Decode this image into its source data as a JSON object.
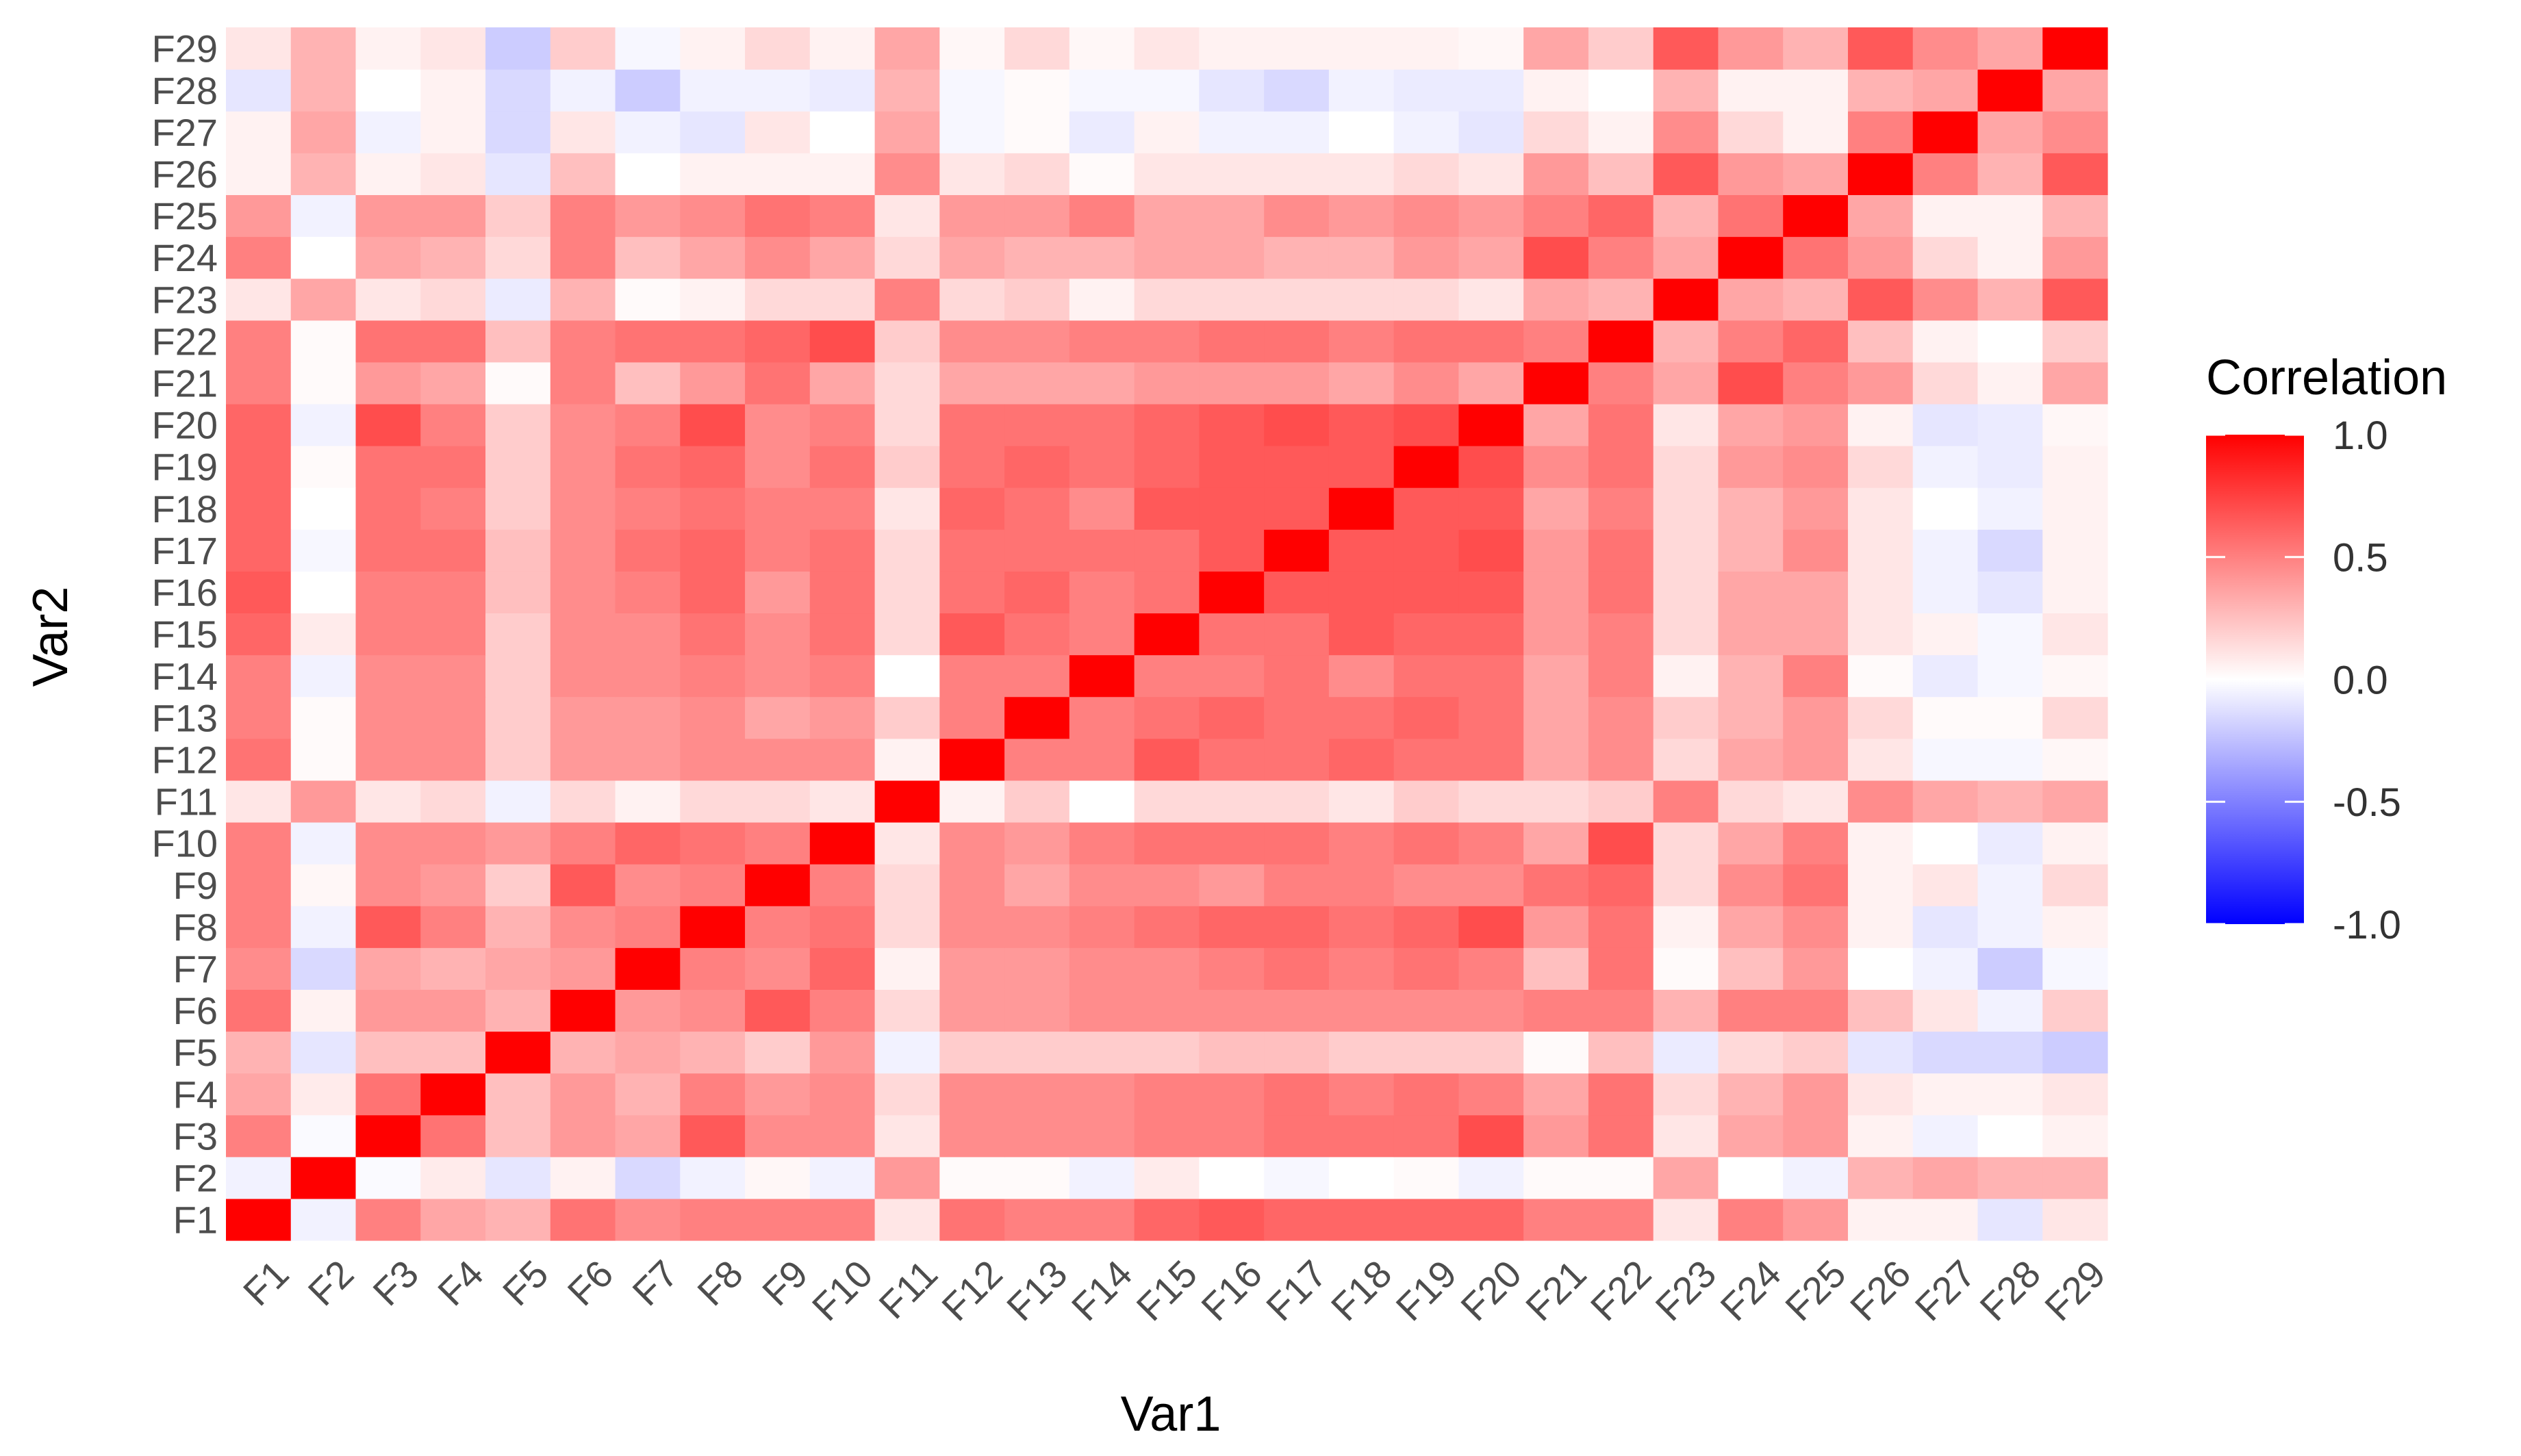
{
  "chart_data": {
    "type": "heatmap",
    "variables": [
      "F1",
      "F2",
      "F3",
      "F4",
      "F5",
      "F6",
      "F7",
      "F8",
      "F9",
      "F10",
      "F11",
      "F12",
      "F13",
      "F14",
      "F15",
      "F16",
      "F17",
      "F18",
      "F19",
      "F20",
      "F21",
      "F22",
      "F23",
      "F24",
      "F25",
      "F26",
      "F27",
      "F28",
      "F29"
    ],
    "xlabel": "Var1",
    "ylabel": "Var2",
    "legend": {
      "title": "Correlation",
      "position": "right",
      "ticks": [
        1.0,
        0.5,
        0.0,
        -0.5,
        -1.0
      ],
      "tick_labels": [
        "1.0",
        "0.5",
        "0.0",
        "-0.5",
        "-1.0"
      ],
      "range": [
        -1.0,
        1.0
      ]
    },
    "colors": {
      "low": "#0000FF",
      "mid": "#FFFFFF",
      "high": "#FF0000"
    },
    "grid": false,
    "matrix": [
      [
        1.0,
        -0.05,
        0.5,
        0.35,
        0.3,
        0.55,
        0.45,
        0.5,
        0.5,
        0.5,
        0.1,
        0.55,
        0.5,
        0.5,
        0.6,
        0.65,
        0.6,
        0.6,
        0.6,
        0.6,
        0.5,
        0.5,
        0.1,
        0.5,
        0.4,
        0.05,
        0.05,
        -0.1,
        0.1
      ],
      [
        -0.05,
        1.0,
        -0.02,
        0.08,
        -0.1,
        0.05,
        -0.15,
        -0.05,
        0.03,
        -0.05,
        0.4,
        0.02,
        0.02,
        -0.05,
        0.08,
        0.0,
        -0.03,
        0.0,
        0.02,
        -0.05,
        0.02,
        0.02,
        0.35,
        0.0,
        -0.05,
        0.3,
        0.35,
        0.3,
        0.3
      ],
      [
        0.5,
        -0.02,
        1.0,
        0.55,
        0.25,
        0.4,
        0.35,
        0.65,
        0.45,
        0.45,
        0.1,
        0.45,
        0.45,
        0.45,
        0.5,
        0.5,
        0.55,
        0.55,
        0.55,
        0.7,
        0.4,
        0.55,
        0.1,
        0.35,
        0.4,
        0.05,
        -0.05,
        0.0,
        0.05
      ],
      [
        0.35,
        0.08,
        0.55,
        1.0,
        0.25,
        0.4,
        0.3,
        0.5,
        0.4,
        0.45,
        0.15,
        0.45,
        0.45,
        0.45,
        0.5,
        0.5,
        0.55,
        0.5,
        0.55,
        0.5,
        0.35,
        0.55,
        0.15,
        0.3,
        0.4,
        0.1,
        0.05,
        0.05,
        0.1
      ],
      [
        0.3,
        -0.1,
        0.25,
        0.25,
        1.0,
        0.3,
        0.35,
        0.3,
        0.2,
        0.4,
        -0.05,
        0.2,
        0.2,
        0.2,
        0.2,
        0.25,
        0.25,
        0.2,
        0.2,
        0.2,
        0.02,
        0.25,
        -0.08,
        0.15,
        0.2,
        -0.1,
        -0.15,
        -0.15,
        -0.2
      ],
      [
        0.55,
        0.05,
        0.4,
        0.4,
        0.3,
        1.0,
        0.4,
        0.45,
        0.65,
        0.5,
        0.15,
        0.4,
        0.4,
        0.45,
        0.45,
        0.45,
        0.45,
        0.45,
        0.45,
        0.45,
        0.5,
        0.5,
        0.3,
        0.5,
        0.5,
        0.25,
        0.1,
        -0.05,
        0.2
      ],
      [
        0.45,
        -0.15,
        0.35,
        0.3,
        0.35,
        0.4,
        1.0,
        0.5,
        0.45,
        0.6,
        0.05,
        0.4,
        0.4,
        0.45,
        0.45,
        0.5,
        0.55,
        0.5,
        0.55,
        0.5,
        0.25,
        0.55,
        0.02,
        0.25,
        0.4,
        0.0,
        -0.05,
        -0.2,
        -0.03
      ],
      [
        0.5,
        -0.05,
        0.65,
        0.5,
        0.3,
        0.45,
        0.5,
        1.0,
        0.5,
        0.55,
        0.15,
        0.45,
        0.45,
        0.5,
        0.55,
        0.6,
        0.6,
        0.55,
        0.6,
        0.7,
        0.4,
        0.55,
        0.05,
        0.35,
        0.45,
        0.05,
        -0.1,
        -0.05,
        0.05
      ],
      [
        0.5,
        0.03,
        0.45,
        0.4,
        0.2,
        0.65,
        0.45,
        0.5,
        1.0,
        0.5,
        0.15,
        0.45,
        0.35,
        0.45,
        0.45,
        0.4,
        0.5,
        0.5,
        0.45,
        0.45,
        0.55,
        0.6,
        0.15,
        0.45,
        0.55,
        0.05,
        0.1,
        -0.05,
        0.15
      ],
      [
        0.5,
        -0.05,
        0.45,
        0.45,
        0.4,
        0.5,
        0.6,
        0.55,
        0.5,
        1.0,
        0.1,
        0.45,
        0.4,
        0.5,
        0.55,
        0.55,
        0.55,
        0.5,
        0.55,
        0.5,
        0.35,
        0.7,
        0.15,
        0.35,
        0.5,
        0.05,
        0.0,
        -0.08,
        0.05
      ],
      [
        0.1,
        0.4,
        0.1,
        0.15,
        -0.05,
        0.15,
        0.05,
        0.15,
        0.15,
        0.1,
        1.0,
        0.05,
        0.2,
        0.0,
        0.15,
        0.15,
        0.15,
        0.1,
        0.2,
        0.15,
        0.15,
        0.2,
        0.5,
        0.15,
        0.1,
        0.45,
        0.35,
        0.3,
        0.35
      ],
      [
        0.55,
        0.02,
        0.45,
        0.45,
        0.2,
        0.4,
        0.4,
        0.45,
        0.45,
        0.45,
        0.05,
        1.0,
        0.5,
        0.5,
        0.65,
        0.55,
        0.55,
        0.6,
        0.55,
        0.55,
        0.35,
        0.45,
        0.15,
        0.35,
        0.4,
        0.1,
        -0.03,
        -0.03,
        0.03
      ],
      [
        0.5,
        0.02,
        0.45,
        0.45,
        0.2,
        0.4,
        0.4,
        0.45,
        0.35,
        0.4,
        0.2,
        0.5,
        1.0,
        0.5,
        0.55,
        0.6,
        0.55,
        0.55,
        0.6,
        0.55,
        0.35,
        0.45,
        0.2,
        0.3,
        0.4,
        0.15,
        0.02,
        0.02,
        0.15
      ],
      [
        0.5,
        -0.05,
        0.45,
        0.45,
        0.2,
        0.45,
        0.45,
        0.5,
        0.45,
        0.5,
        0.0,
        0.5,
        0.5,
        1.0,
        0.5,
        0.5,
        0.55,
        0.45,
        0.55,
        0.55,
        0.35,
        0.5,
        0.05,
        0.3,
        0.5,
        0.02,
        -0.08,
        -0.03,
        0.03
      ],
      [
        0.6,
        0.08,
        0.5,
        0.5,
        0.2,
        0.45,
        0.45,
        0.55,
        0.45,
        0.55,
        0.15,
        0.65,
        0.55,
        0.5,
        1.0,
        0.55,
        0.55,
        0.65,
        0.6,
        0.6,
        0.4,
        0.5,
        0.15,
        0.35,
        0.35,
        0.1,
        0.05,
        -0.03,
        0.1
      ],
      [
        0.65,
        0.0,
        0.5,
        0.5,
        0.25,
        0.45,
        0.5,
        0.6,
        0.4,
        0.55,
        0.15,
        0.55,
        0.6,
        0.5,
        0.55,
        1.0,
        0.65,
        0.65,
        0.65,
        0.65,
        0.4,
        0.55,
        0.15,
        0.35,
        0.35,
        0.1,
        -0.05,
        -0.1,
        0.05
      ],
      [
        0.6,
        -0.03,
        0.55,
        0.55,
        0.25,
        0.45,
        0.55,
        0.6,
        0.5,
        0.55,
        0.15,
        0.55,
        0.55,
        0.55,
        0.55,
        0.65,
        1.0,
        0.65,
        0.65,
        0.7,
        0.4,
        0.55,
        0.15,
        0.3,
        0.45,
        0.1,
        -0.05,
        -0.15,
        0.05
      ],
      [
        0.6,
        0.0,
        0.55,
        0.5,
        0.2,
        0.45,
        0.5,
        0.55,
        0.5,
        0.5,
        0.1,
        0.6,
        0.55,
        0.45,
        0.65,
        0.65,
        0.65,
        1.0,
        0.65,
        0.65,
        0.35,
        0.5,
        0.15,
        0.3,
        0.4,
        0.1,
        0.0,
        -0.05,
        0.05
      ],
      [
        0.6,
        0.02,
        0.55,
        0.55,
        0.2,
        0.45,
        0.55,
        0.6,
        0.45,
        0.55,
        0.2,
        0.55,
        0.6,
        0.55,
        0.6,
        0.65,
        0.65,
        0.65,
        1.0,
        0.7,
        0.45,
        0.55,
        0.15,
        0.4,
        0.45,
        0.15,
        -0.05,
        -0.08,
        0.05
      ],
      [
        0.6,
        -0.05,
        0.7,
        0.5,
        0.2,
        0.45,
        0.5,
        0.7,
        0.45,
        0.5,
        0.15,
        0.55,
        0.55,
        0.55,
        0.6,
        0.65,
        0.7,
        0.65,
        0.7,
        1.0,
        0.35,
        0.55,
        0.1,
        0.35,
        0.4,
        0.05,
        -0.1,
        -0.08,
        0.03
      ],
      [
        0.5,
        0.02,
        0.4,
        0.35,
        0.02,
        0.5,
        0.25,
        0.4,
        0.55,
        0.35,
        0.15,
        0.35,
        0.35,
        0.35,
        0.4,
        0.4,
        0.4,
        0.35,
        0.45,
        0.35,
        1.0,
        0.5,
        0.35,
        0.7,
        0.5,
        0.4,
        0.15,
        0.05,
        0.35
      ],
      [
        0.5,
        0.02,
        0.55,
        0.55,
        0.25,
        0.5,
        0.55,
        0.55,
        0.6,
        0.7,
        0.2,
        0.45,
        0.45,
        0.5,
        0.5,
        0.55,
        0.55,
        0.5,
        0.55,
        0.55,
        0.5,
        1.0,
        0.3,
        0.5,
        0.6,
        0.25,
        0.05,
        0.0,
        0.2
      ],
      [
        0.1,
        0.35,
        0.1,
        0.15,
        -0.08,
        0.3,
        0.02,
        0.05,
        0.15,
        0.15,
        0.5,
        0.15,
        0.2,
        0.05,
        0.15,
        0.15,
        0.15,
        0.15,
        0.15,
        0.1,
        0.35,
        0.3,
        1.0,
        0.35,
        0.3,
        0.65,
        0.45,
        0.3,
        0.65
      ],
      [
        0.5,
        0.0,
        0.35,
        0.3,
        0.15,
        0.5,
        0.25,
        0.35,
        0.45,
        0.35,
        0.15,
        0.35,
        0.3,
        0.3,
        0.35,
        0.35,
        0.3,
        0.3,
        0.4,
        0.35,
        0.7,
        0.5,
        0.35,
        1.0,
        0.55,
        0.4,
        0.15,
        0.05,
        0.4
      ],
      [
        0.4,
        -0.05,
        0.4,
        0.4,
        0.2,
        0.5,
        0.4,
        0.45,
        0.55,
        0.5,
        0.1,
        0.4,
        0.4,
        0.5,
        0.35,
        0.35,
        0.45,
        0.4,
        0.45,
        0.4,
        0.5,
        0.6,
        0.3,
        0.55,
        1.0,
        0.35,
        0.05,
        0.05,
        0.3
      ],
      [
        0.05,
        0.3,
        0.05,
        0.1,
        -0.1,
        0.25,
        0.0,
        0.05,
        0.05,
        0.05,
        0.45,
        0.1,
        0.15,
        0.02,
        0.1,
        0.1,
        0.1,
        0.1,
        0.15,
        0.1,
        0.4,
        0.25,
        0.65,
        0.4,
        0.35,
        1.0,
        0.5,
        0.3,
        0.65
      ],
      [
        0.05,
        0.35,
        -0.05,
        0.05,
        -0.15,
        0.1,
        -0.05,
        -0.1,
        0.1,
        0.0,
        0.35,
        -0.03,
        0.02,
        -0.08,
        0.05,
        -0.05,
        -0.05,
        0.0,
        -0.05,
        -0.1,
        0.15,
        0.05,
        0.45,
        0.15,
        0.05,
        0.5,
        1.0,
        0.35,
        0.45
      ],
      [
        -0.1,
        0.3,
        0.0,
        0.05,
        -0.15,
        -0.05,
        -0.2,
        -0.05,
        -0.05,
        -0.08,
        0.3,
        -0.03,
        0.02,
        -0.03,
        -0.03,
        -0.1,
        -0.15,
        -0.05,
        -0.08,
        -0.08,
        0.05,
        0.0,
        0.3,
        0.05,
        0.05,
        0.3,
        0.35,
        1.0,
        0.35
      ],
      [
        0.1,
        0.3,
        0.05,
        0.1,
        -0.2,
        0.2,
        -0.03,
        0.05,
        0.15,
        0.05,
        0.35,
        0.03,
        0.15,
        0.03,
        0.1,
        0.05,
        0.05,
        0.05,
        0.05,
        0.03,
        0.35,
        0.2,
        0.65,
        0.4,
        0.3,
        0.65,
        0.45,
        0.35,
        1.0
      ]
    ]
  }
}
